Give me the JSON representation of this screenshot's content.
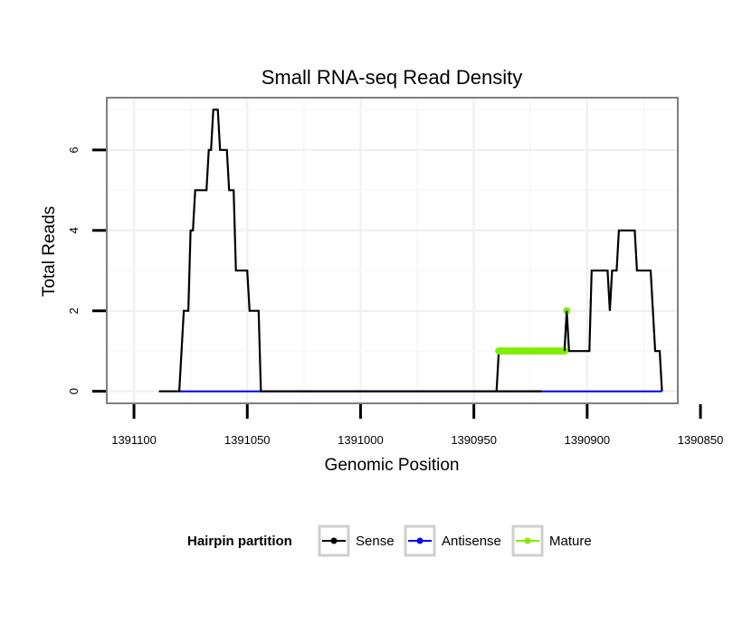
{
  "chart_data": {
    "type": "line",
    "title": "Small RNA-seq Read Density",
    "xlabel": "Genomic Position",
    "ylabel": "Total Reads",
    "xlim": [
      1391112,
      1390860
    ],
    "ylim": [
      -0.3,
      7.3
    ],
    "x_reversed": true,
    "x_ticks": [
      1391100,
      1391050,
      1391000,
      1390950,
      1390900,
      1390850
    ],
    "x_tick_labels": [
      "1391100",
      "1391050",
      "1391000",
      "1390950",
      "1390900",
      "1390850"
    ],
    "y_ticks": [
      0,
      2,
      4,
      6
    ],
    "y_tick_labels": [
      "0",
      "2",
      "4",
      "6"
    ],
    "grid": true,
    "legend": {
      "title": "Hairpin partition",
      "position": "bottom",
      "entries": [
        "Sense",
        "Antisense",
        "Mature"
      ]
    },
    "series": [
      {
        "name": "Sense",
        "color": "#000000",
        "points": [
          [
            1391089,
            0
          ],
          [
            1391080,
            0
          ],
          [
            1391078,
            2
          ],
          [
            1391076,
            2
          ],
          [
            1391075,
            4
          ],
          [
            1391074,
            4
          ],
          [
            1391073,
            5
          ],
          [
            1391068,
            5
          ],
          [
            1391067,
            6
          ],
          [
            1391066,
            6
          ],
          [
            1391065,
            7
          ],
          [
            1391063,
            7
          ],
          [
            1391062,
            6
          ],
          [
            1391059,
            6
          ],
          [
            1391058,
            5
          ],
          [
            1391056,
            5
          ],
          [
            1391055,
            3
          ],
          [
            1391050,
            3
          ],
          [
            1391049,
            2
          ],
          [
            1391045,
            2
          ],
          [
            1391044,
            0
          ],
          [
            1390920,
            0
          ],
          [
            1390940,
            0
          ],
          [
            1390939,
            1
          ],
          [
            1390910,
            1
          ],
          [
            1390909,
            2
          ],
          [
            1390908,
            1
          ],
          [
            1390899,
            1
          ],
          [
            1390898,
            3
          ],
          [
            1390891,
            3
          ],
          [
            1390890,
            2
          ],
          [
            1390889,
            3
          ],
          [
            1390887,
            3
          ],
          [
            1390886,
            4
          ],
          [
            1390879,
            4
          ],
          [
            1390878,
            3
          ],
          [
            1390872,
            3
          ],
          [
            1390871,
            2
          ],
          [
            1390870,
            1
          ],
          [
            1390868,
            1
          ],
          [
            1390867,
            0
          ]
        ]
      },
      {
        "name": "Antisense",
        "color": "#0000ff",
        "points": [
          [
            1391080,
            0
          ],
          [
            1391044,
            0
          ],
          [
            1390940,
            0
          ],
          [
            1390867,
            0
          ]
        ]
      },
      {
        "name": "Mature",
        "color": "#80ee00",
        "points": [
          [
            1390939,
            1
          ],
          [
            1390938,
            1
          ],
          [
            1390937,
            1
          ],
          [
            1390936,
            1
          ],
          [
            1390935,
            1
          ],
          [
            1390934,
            1
          ],
          [
            1390933,
            1
          ],
          [
            1390932,
            1
          ],
          [
            1390931,
            1
          ],
          [
            1390930,
            1
          ],
          [
            1390929,
            1
          ],
          [
            1390928,
            1
          ],
          [
            1390927,
            1
          ],
          [
            1390926,
            1
          ],
          [
            1390925,
            1
          ],
          [
            1390924,
            1
          ],
          [
            1390923,
            1
          ],
          [
            1390922,
            1
          ],
          [
            1390921,
            1
          ],
          [
            1390920,
            1
          ],
          [
            1390919,
            1
          ],
          [
            1390918,
            1
          ],
          [
            1390917,
            1
          ],
          [
            1390916,
            1
          ],
          [
            1390915,
            1
          ],
          [
            1390914,
            1
          ],
          [
            1390913,
            1
          ],
          [
            1390912,
            1
          ],
          [
            1390911,
            1
          ],
          [
            1390910,
            1
          ],
          [
            1390909,
            2
          ]
        ]
      }
    ]
  }
}
